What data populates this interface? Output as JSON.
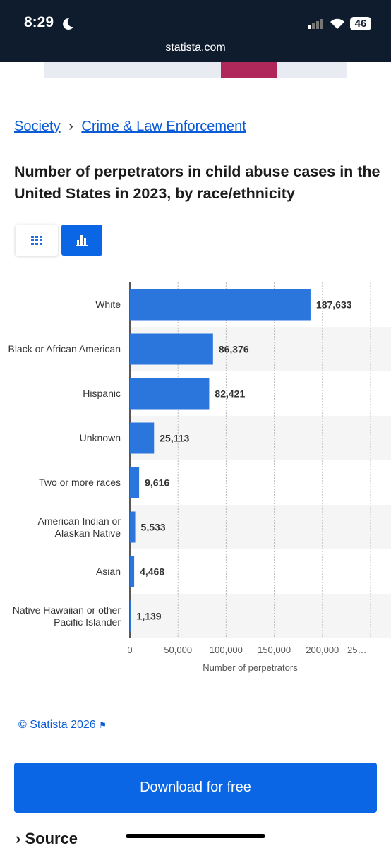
{
  "status": {
    "time": "8:29",
    "battery": "46",
    "url": "statista.com"
  },
  "breadcrumbs": [
    "Society",
    "Crime & Law Enforcement"
  ],
  "chart_data": {
    "type": "hbar",
    "title": "Number of perpetrators in child abuse cases in the United States in 2023, by race/ethnicity",
    "categories": [
      "White",
      "Black or African American",
      "Hispanic",
      "Unknown",
      "Two or more races",
      "American Indian or Alaskan Native",
      "Asian",
      "Native Hawaiian or other Pacific Islander"
    ],
    "values": [
      187633,
      86376,
      82421,
      25113,
      9616,
      5533,
      4468,
      1139
    ],
    "value_labels": [
      "187,633",
      "86,376",
      "82,421",
      "25,113",
      "9,616",
      "5,533",
      "4,468",
      "1,139"
    ],
    "color": "#2a76dd",
    "xlim": [
      0,
      250000
    ],
    "xticks": [
      0,
      {
        "value": 50000,
        "label": "50,000"
      },
      {
        "value": 100000,
        "label": "100,000"
      },
      {
        "value": 150000,
        "label": "150,000"
      },
      {
        "value": 200000,
        "label": "200,000"
      },
      {
        "value": 250000,
        "label": "25…"
      }
    ],
    "xlabel": "Number of perpetrators",
    "grid": true
  },
  "footer": {
    "copyright": "© Statista 2026",
    "button": "Download for free",
    "source": "Source"
  }
}
